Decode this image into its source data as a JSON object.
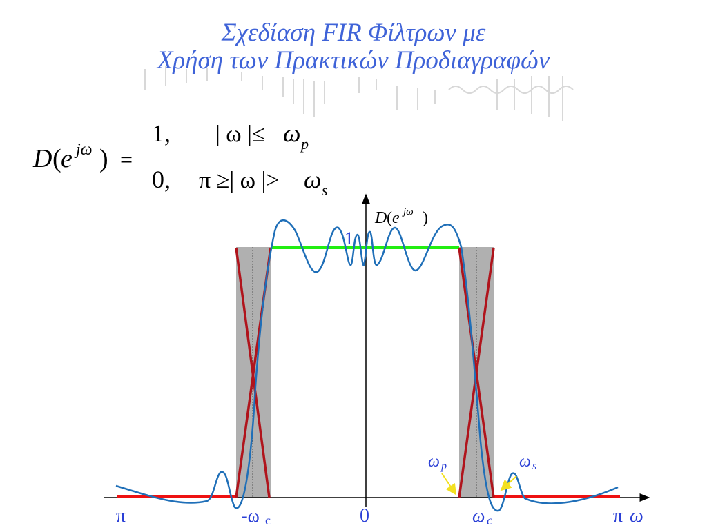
{
  "title": {
    "line1": "Σχεδίαση  FIR Φίλτρων με",
    "line2": "Χρήση των  Πρακτικών Προδιαγραφών"
  },
  "equation": {
    "lhs_D": "D",
    "lhs_open": "(",
    "lhs_e": "e",
    "lhs_exp": "jω",
    "lhs_close": ")",
    "equals": "=",
    "case1_value": "1,",
    "case1_cond_prefix": "| ω |≤ ",
    "case1_omega": "ω",
    "case1_sub": "p",
    "case2_value": "0,",
    "case2_cond_prefix": "π ≥| ω |> ",
    "case2_omega": "ω",
    "case2_sub": "s"
  },
  "plot": {
    "y_axis_label_D": "D",
    "y_axis_label_open": "(",
    "y_axis_label_e": "e",
    "y_axis_label_exp": "jω",
    "y_axis_label_close": ")",
    "one_label": "1",
    "labels": {
      "neg_pi": "π",
      "neg_wc_prefix": "-ω",
      "neg_wc_sub": "c",
      "zero": "0",
      "wc": "ω",
      "wc_sub": "c",
      "pi": "π",
      "omega": "ω",
      "wp": "ω",
      "wp_sub": "p",
      "ws": "ω",
      "ws_sub": "s"
    },
    "colors": {
      "title": "#3f63d8",
      "passband_line": "#22ee11",
      "stopband_line": "#ee1111",
      "transition_lines": "#b0141c",
      "response_curve": "#1f6fb8",
      "transition_band": "#b0b0b0",
      "label_blue": "#2a3fd6",
      "arrow_yellow": "#f2e020"
    }
  }
}
